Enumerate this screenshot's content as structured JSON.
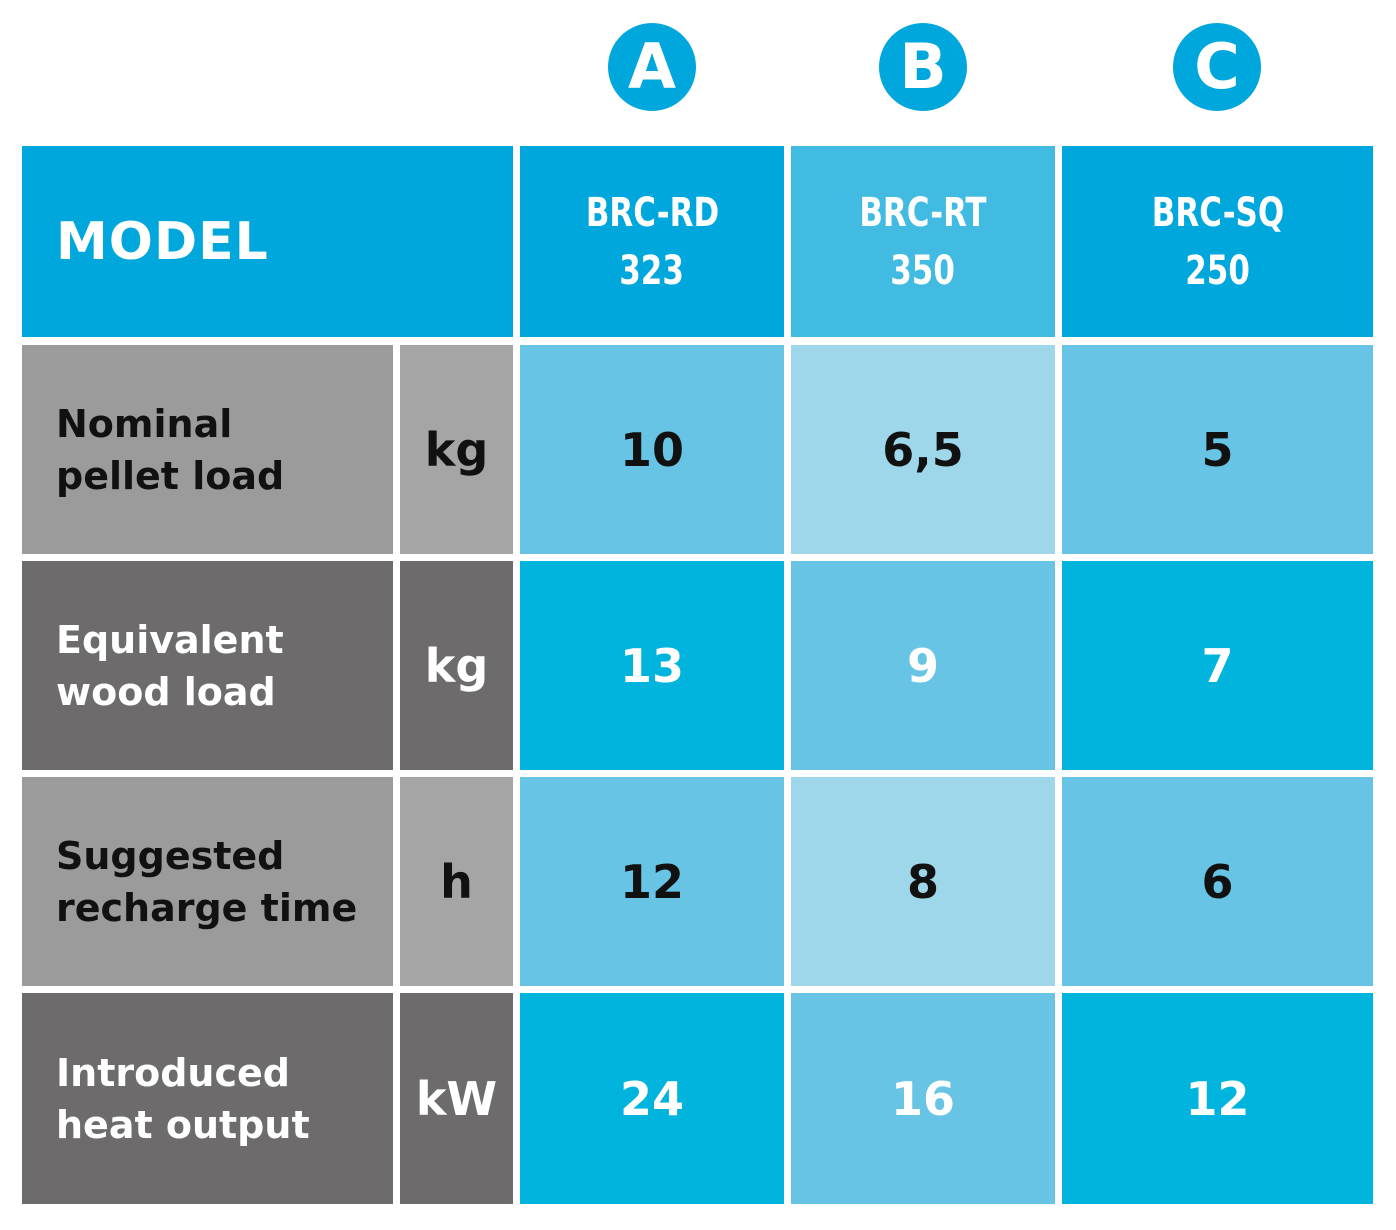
{
  "badges": [
    "A",
    "B",
    "C"
  ],
  "header": {
    "model_label": "MODEL",
    "columns": [
      {
        "line1": "BRC-RD",
        "line2": "323"
      },
      {
        "line1": "BRC-RT",
        "line2": "350"
      },
      {
        "line1": "BRC-SQ",
        "line2": "250"
      }
    ]
  },
  "rows": [
    {
      "label_line1": "Nominal",
      "label_line2": "pellet load",
      "unit": "kg",
      "values": [
        "10",
        "6,5",
        "5"
      ]
    },
    {
      "label_line1": "Equivalent",
      "label_line2": "wood load",
      "unit": "kg",
      "values": [
        "13",
        "9",
        "7"
      ]
    },
    {
      "label_line1": "Suggested",
      "label_line2": "recharge time",
      "unit": "h",
      "values": [
        "12",
        "8",
        "6"
      ]
    },
    {
      "label_line1": "Introduced",
      "label_line2": "heat output",
      "unit": "kW",
      "values": [
        "24",
        "16",
        "12"
      ]
    }
  ],
  "colors": {
    "brand_blue": "#00a7dc",
    "header_mid_blue": "#41bbe1",
    "light_row_blue": "#68c4e5",
    "light_row_mid_blue": "#9ed7ea",
    "dark_row_blue": "#00b4de",
    "dark_row_mid_blue": "#68c4e5",
    "grey_light": "#9c9b9c",
    "grey_light_unit": "#a6a5a6",
    "grey_dark": "#6d6b6c"
  }
}
